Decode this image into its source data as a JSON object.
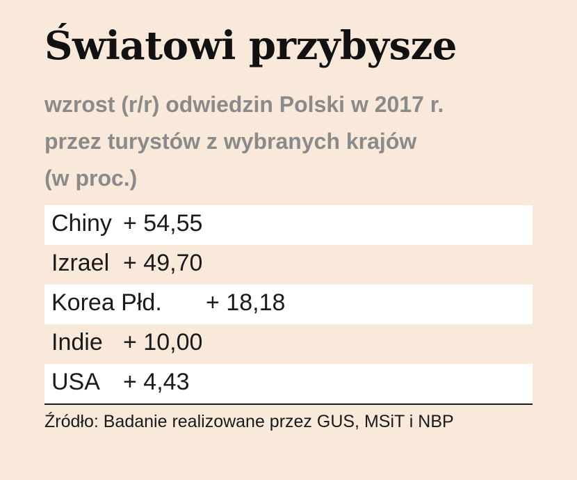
{
  "chart_data": {
    "type": "table",
    "title": "Światowi przybysze",
    "subtitle_lines": [
      "wzrost (r/r) odwiedzin Polski w 2017 r.",
      "przez turystów z wybranych krajów",
      "(w proc.)"
    ],
    "categories": [
      "Chiny",
      "Izrael",
      "Korea Płd.",
      "Indie",
      "USA"
    ],
    "value_labels": [
      "+ 54,55",
      "+ 49,70",
      "+ 18,18",
      "+ 10,00",
      "+ 4,43"
    ],
    "values": [
      54.55,
      49.7,
      18.18,
      10.0,
      4.43
    ],
    "source": "Źródło: Badanie realizowane przez GUS, MSiT i NBP"
  },
  "colors": {
    "background": "#f8e9da",
    "row_shade": "#ffffff",
    "subtitle": "#8a8a8a",
    "text": "#1a1a1a"
  }
}
